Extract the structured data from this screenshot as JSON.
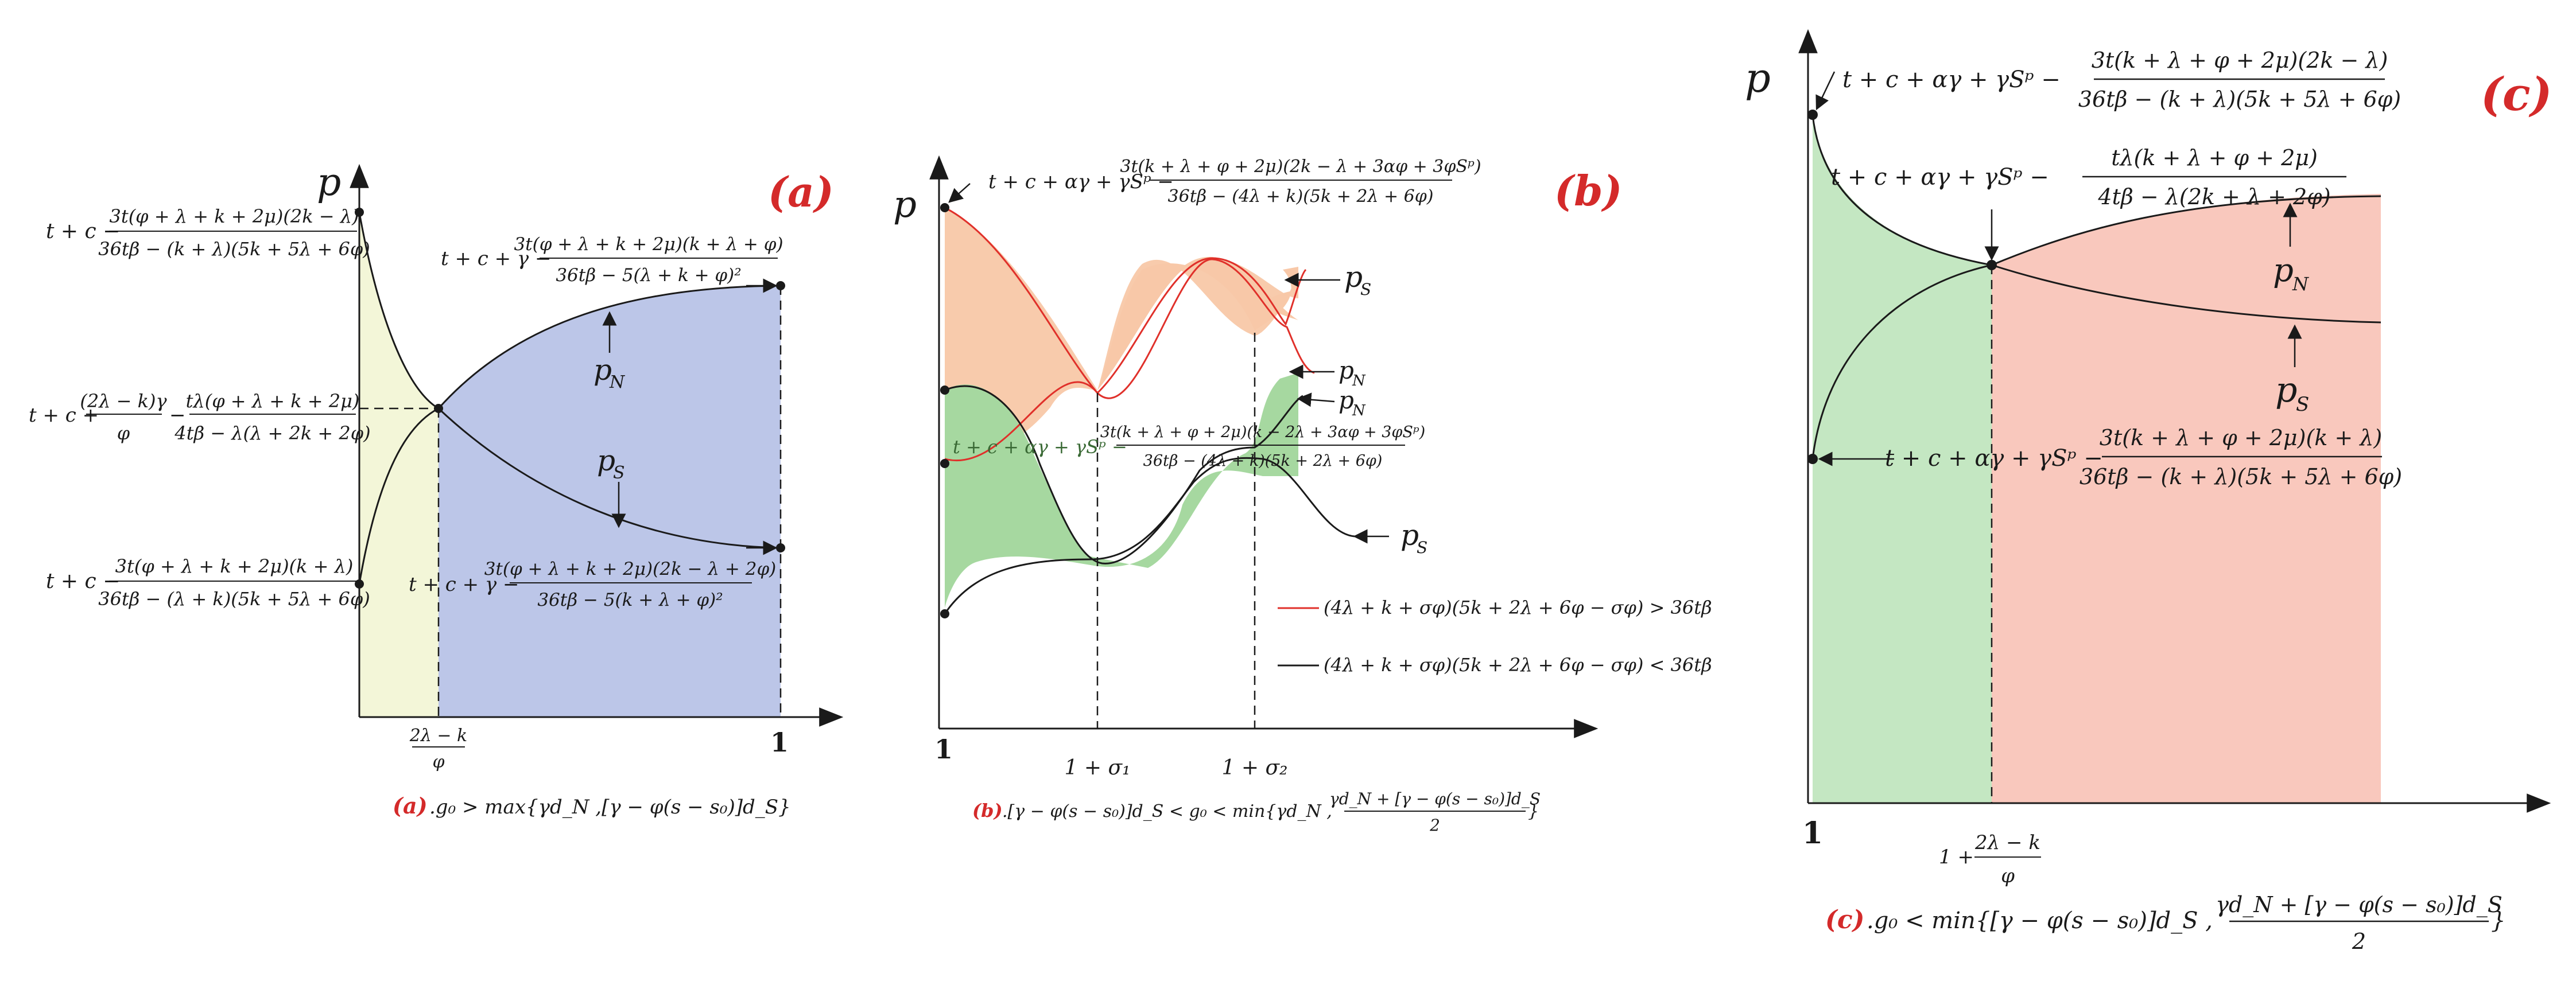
{
  "colors": {
    "accent_red": "#d42a2a",
    "fill_a_left": "#f3f6d8",
    "fill_a_right": "#bcc6e8",
    "fill_b_orange": "#f8c8a8",
    "fill_b_green": "#a6d8a0",
    "fill_c_green": "#c4e7c2",
    "fill_c_red": "#f9c8bd",
    "curve_dark": "#1a1a1a",
    "curve_red": "#e0302a"
  },
  "panel_a": {
    "label": "(a)",
    "axis_p": "p",
    "x_tick_frac_num": "2λ − k",
    "x_tick_frac_den": "φ",
    "x_tick_1": "1",
    "left_top_prefix": "t + c −",
    "left_top_num": "3t(φ + λ + k + 2μ)(2k − λ)",
    "left_top_den": "36tβ − (k + λ)(5k + 5λ + 6φ)",
    "left_mid_prefix": "t + c +",
    "left_mid_num1": "(2λ − k)γ",
    "left_mid_den1": "φ",
    "left_mid_minus": "−",
    "left_mid_num2": "tλ(φ + λ + k + 2μ)",
    "left_mid_den2": "4tβ − λ(λ + 2k + 2φ)",
    "left_bot_prefix": "t + c −",
    "left_bot_num": "3t(φ + λ + k + 2μ)(k + λ)",
    "left_bot_den": "36tβ − (λ + k)(5k + 5λ + 6φ)",
    "top_right_prefix": "t + c + γ −",
    "top_right_num": "3t(φ + λ + k + 2μ)(k + λ + φ)",
    "top_right_den": "36tβ − 5(λ + k + φ)²",
    "bot_right_prefix": "t + c + γ −",
    "bot_right_num": "3t(φ + λ + k + 2μ)(2k − λ + 2φ)",
    "bot_right_den": "36tβ − 5(k + λ + φ)²",
    "pN": "p",
    "pN_sub": "N",
    "pS": "p",
    "pS_sub": "S",
    "caption_label": "(a)",
    "caption_text": ".g₀ > max{γd_N ,[γ − φ(s − s₀)]d_S}"
  },
  "panel_b": {
    "label": "(b)",
    "axis_p": "p",
    "top_prefix": "t + c + αγ + γSᵖ −",
    "top_num": "3t(k + λ + φ + 2μ)(2k − λ + 3αφ + 3φSᵖ)",
    "top_den": "36tβ − (4λ + k)(5k + 2λ + 6φ)",
    "mid_prefix": "t + c + αγ + γSᵖ −",
    "mid_num": "3t(k + λ + φ + 2μ)(k − 2λ + 3αφ + 3φSᵖ)",
    "mid_den": "36tβ − (4λ + k)(5k + 2λ + 6φ)",
    "pS_top": "p",
    "pS_top_sub": "S",
    "pN_1": "p",
    "pN_1_sub": "N",
    "pN_2": "p",
    "pN_2_sub": "N",
    "pS_bot": "p",
    "pS_bot_sub": "S",
    "legend_red": "(4λ + k + σφ)(5k + 2λ + 6φ − σφ) > 36tβ",
    "legend_black": "(4λ + k + σφ)(5k + 2λ + 6φ − σφ) < 36tβ",
    "x_tick_1": "1",
    "x_tick_s1": "1 + σ₁",
    "x_tick_s2": "1 + σ₂",
    "caption_label": "(b)",
    "caption_text": ".[γ − φ(s − s₀)]d_S < g₀ < min{γd_N ,",
    "caption_num": "γd_N + [γ − φ(s − s₀)]d_S",
    "caption_den": "2",
    "caption_close": "}"
  },
  "panel_c": {
    "label": "(c)",
    "axis_p": "p",
    "top_prefix": "t + c + αγ + γSᵖ −",
    "top_num": "3t(k + λ + φ + 2μ)(2k − λ)",
    "top_den": "36tβ − (k + λ)(5k + 5λ + 6φ)",
    "mid_prefix": "t + c + αγ + γSᵖ −",
    "mid_num": "tλ(k + λ + φ + 2μ)",
    "mid_den": "4tβ − λ(2k + λ + 2φ)",
    "bot_prefix": "t + c + αγ + γSᵖ −",
    "bot_num": "3t(k + λ + φ + 2μ)(k + λ)",
    "bot_den": "36tβ − (k + λ)(5k + 5λ + 6φ)",
    "pN": "p",
    "pN_sub": "N",
    "pS": "p",
    "pS_sub": "S",
    "x_tick_1": "1",
    "x_tick_pre": "1 +",
    "x_tick_num": "2λ − k",
    "x_tick_den": "φ",
    "caption_label": "(c)",
    "caption_text": ".g₀ < min{[γ − φ(s − s₀)]d_S ,",
    "caption_num": "γd_N + [γ − φ(s − s₀)]d_S",
    "caption_den": "2",
    "caption_close": "}"
  }
}
